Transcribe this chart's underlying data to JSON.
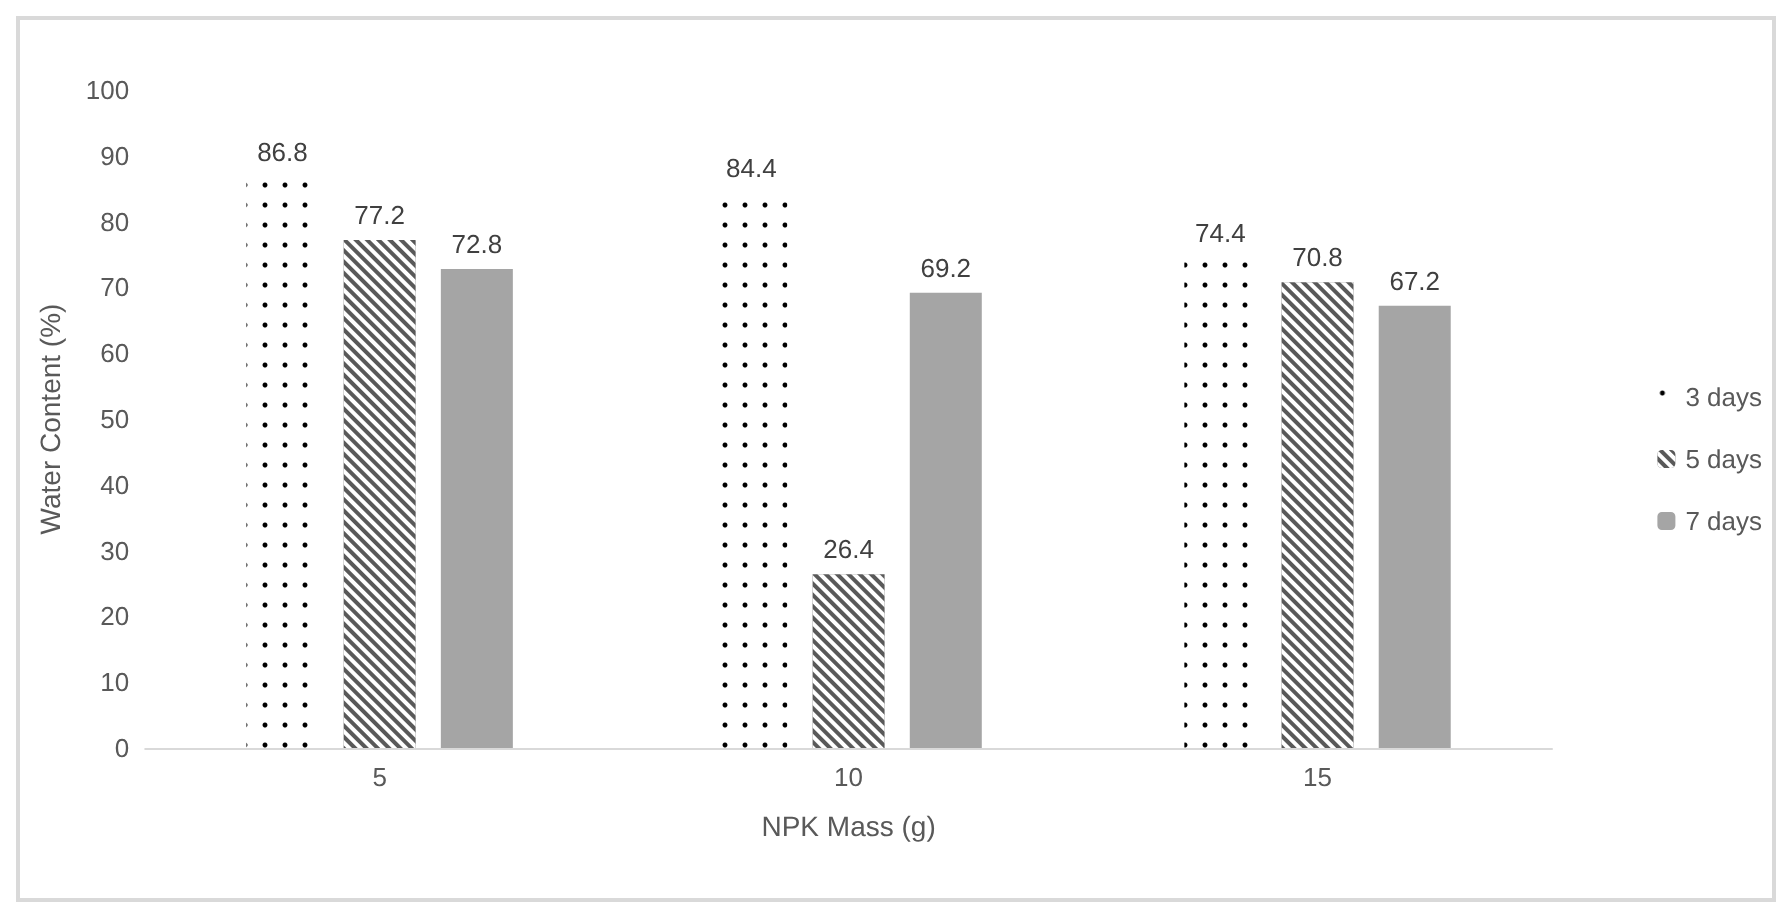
{
  "chart_data": {
    "type": "bar",
    "xlabel": "NPK Mass (g)",
    "ylabel": "Water Content (%)",
    "categories": [
      "5",
      "10",
      "15"
    ],
    "series": [
      {
        "name": "3 days",
        "color": "#ffffff",
        "values": [
          86.8,
          84.4,
          74.4
        ]
      },
      {
        "name": "5 days",
        "color": "#595959",
        "values": [
          77.2,
          26.4,
          70.8
        ]
      },
      {
        "name": "7 days",
        "color": "#a5a5a5",
        "values": [
          72.8,
          69.2,
          67.2
        ]
      }
    ],
    "ylim": [
      0,
      100
    ],
    "yticks": [
      0,
      10,
      20,
      30,
      40,
      50,
      60,
      70,
      80,
      90,
      100
    ],
    "grid": false,
    "legend": "right",
    "data_labels": true
  }
}
